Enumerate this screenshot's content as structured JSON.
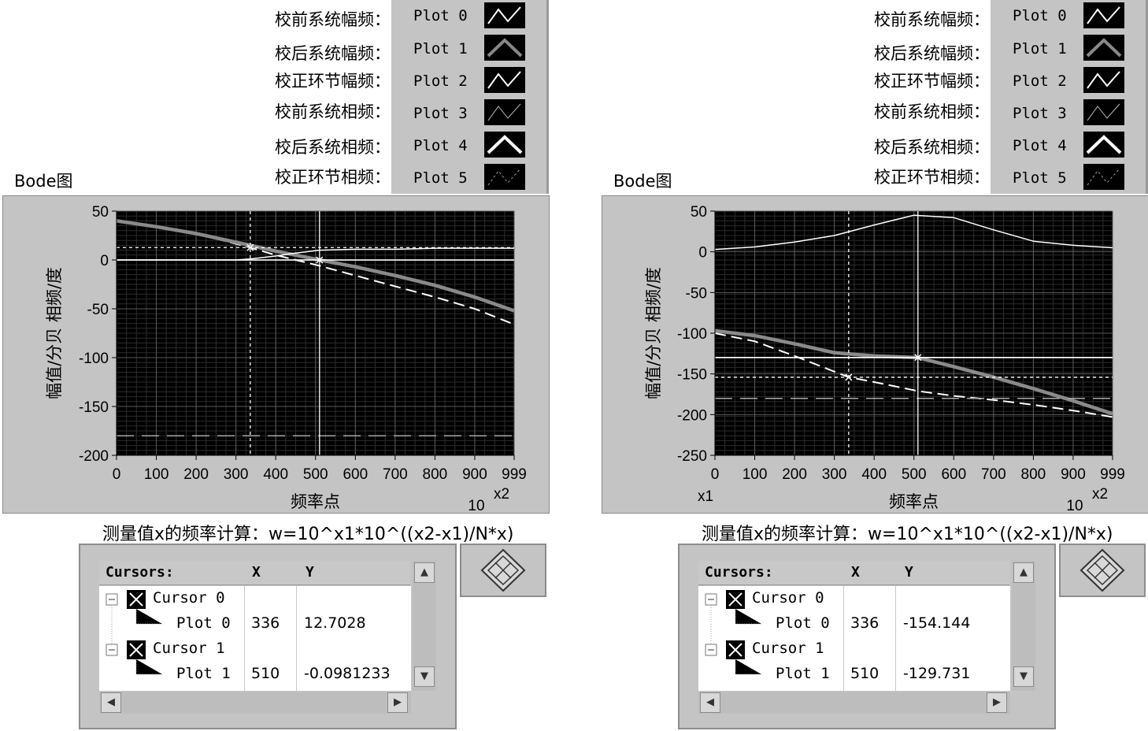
{
  "panels": [
    {
      "legend_labels": [
        "校前系统幅频：",
        "校后系统幅频：",
        "校正环节幅频：",
        "校前系统相频：",
        "校后系统相频：",
        "校正环节相频："
      ],
      "plots": [
        "Plot 0",
        "Plot 1",
        "Plot 2",
        "Plot 3",
        "Plot 4",
        "Plot 5"
      ],
      "graph_title": "Bode图",
      "formula": "测量值x的频率计算：w=10^x1*10^((x2-x1)/N*x)",
      "cursor_table": {
        "header": {
          "name": "Cursors:",
          "x": "X",
          "y": "Y"
        },
        "rows": [
          {
            "cursor": "Cursor 0",
            "plot": "Plot 0",
            "x": "336",
            "y": "12.7028"
          },
          {
            "cursor": "Cursor 1",
            "plot": "Plot 1",
            "x": "510",
            "y": "-0.0981233"
          }
        ]
      }
    },
    {
      "legend_labels": [
        "校前系统幅频：",
        "校后系统幅频：",
        "校正环节幅频：",
        "校前系统相频：",
        "校后系统相频：",
        "校正环节相频："
      ],
      "plots": [
        "Plot 0",
        "Plot 1",
        "Plot 2",
        "Plot 3",
        "Plot 4",
        "Plot 5"
      ],
      "graph_title": "Bode图",
      "formula": "测量值x的频率计算：w=10^x1*10^((x2-x1)/N*x)",
      "cursor_table": {
        "header": {
          "name": "Cursors:",
          "x": "X",
          "y": "Y"
        },
        "rows": [
          {
            "cursor": "Cursor 0",
            "plot": "Plot 0",
            "x": "336",
            "y": "-154.144"
          },
          {
            "cursor": "Cursor 1",
            "plot": "Plot 1",
            "x": "510",
            "y": "-129.731"
          }
        ]
      }
    }
  ],
  "chart_data": [
    {
      "type": "line",
      "title": "Bode图",
      "xlabel": "频率点",
      "ylabel": "幅值/分贝  相频/度",
      "x_ticks": [
        0,
        100,
        200,
        300,
        400,
        500,
        600,
        700,
        800,
        900,
        999
      ],
      "y_ticks": [
        50,
        0,
        -50,
        -100,
        -150,
        -200
      ],
      "xlim": [
        0,
        999
      ],
      "ylim": [
        -200,
        50
      ],
      "x_extra_labels": [
        "10",
        "x2"
      ],
      "grid": true,
      "series": [
        {
          "name": "Plot 0",
          "x": [
            0,
            100,
            200,
            336,
            400,
            510,
            600,
            700,
            800,
            900,
            999
          ],
          "y": [
            40,
            34,
            27,
            12.7,
            5,
            -6,
            -16,
            -27,
            -38,
            -50,
            -66
          ]
        },
        {
          "name": "Plot 1",
          "x": [
            0,
            100,
            200,
            336,
            400,
            510,
            600,
            700,
            800,
            900,
            999
          ],
          "y": [
            40,
            34,
            27,
            15,
            9,
            0,
            -7,
            -16,
            -26,
            -38,
            -52
          ]
        },
        {
          "name": "Plot 2",
          "x": [
            0,
            100,
            200,
            300,
            336,
            400,
            450,
            510,
            600,
            700,
            800,
            900,
            999
          ],
          "y": [
            0,
            0,
            0,
            0,
            1,
            4,
            7,
            10,
            11,
            11,
            12,
            12,
            12
          ]
        },
        {
          "name": "Plot 4",
          "x": [
            0,
            999
          ],
          "y": [
            0,
            0
          ]
        },
        {
          "name": "Plot 5",
          "x": [
            0,
            999
          ],
          "y": [
            -180,
            -180
          ]
        }
      ],
      "cursors": [
        {
          "name": "Cursor 0",
          "x": 336,
          "y": 12.7028
        },
        {
          "name": "Cursor 1",
          "x": 510,
          "y": -0.0981233
        }
      ]
    },
    {
      "type": "line",
      "title": "Bode图",
      "xlabel": "频率点",
      "ylabel": "幅值/分贝  相频/度",
      "x_ticks": [
        0,
        100,
        200,
        300,
        400,
        500,
        600,
        700,
        800,
        900,
        999
      ],
      "y_ticks": [
        50,
        0,
        -50,
        -100,
        -150,
        -200,
        -250
      ],
      "xlim": [
        0,
        999
      ],
      "ylim": [
        -250,
        50
      ],
      "x_extra_labels": [
        "x1",
        "10",
        "x2"
      ],
      "grid": true,
      "series": [
        {
          "name": "Plot 0",
          "x": [
            0,
            100,
            200,
            336,
            400,
            510,
            600,
            700,
            800,
            900,
            999
          ],
          "y": [
            -100,
            -110,
            -128,
            -154,
            -160,
            -171,
            -177,
            -182,
            -188,
            -195,
            -203
          ]
        },
        {
          "name": "Plot 1",
          "x": [
            0,
            100,
            200,
            300,
            400,
            510,
            600,
            700,
            800,
            900,
            999
          ],
          "y": [
            -97,
            -103,
            -113,
            -124,
            -128,
            -130,
            -141,
            -154,
            -168,
            -183,
            -199
          ]
        },
        {
          "name": "Plot 2",
          "x": [
            0,
            100,
            200,
            300,
            400,
            500,
            600,
            700,
            800,
            900,
            999
          ],
          "y": [
            3,
            6,
            12,
            20,
            33,
            45,
            42,
            27,
            13,
            8,
            5
          ]
        },
        {
          "name": "Plot 4",
          "x": [
            0,
            999
          ],
          "y": [
            -130,
            -130
          ]
        },
        {
          "name": "Plot 5",
          "x": [
            0,
            999
          ],
          "y": [
            -180,
            -180
          ]
        }
      ],
      "cursors": [
        {
          "name": "Cursor 0",
          "x": 336,
          "y": -154.144
        },
        {
          "name": "Cursor 1",
          "x": 510,
          "y": -129.731
        }
      ]
    }
  ]
}
